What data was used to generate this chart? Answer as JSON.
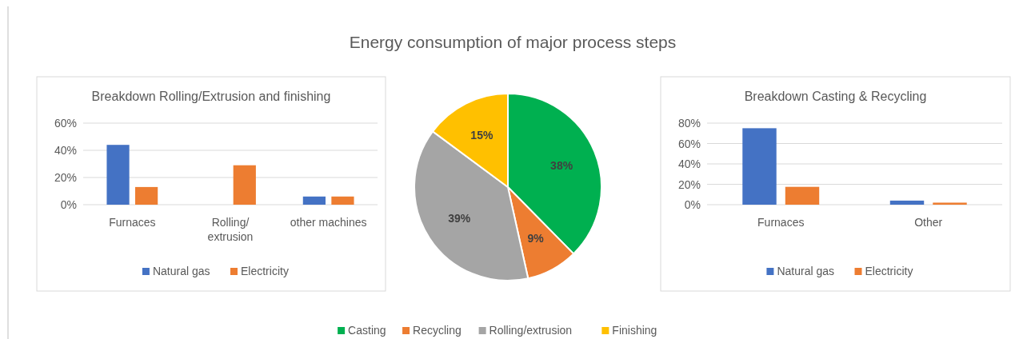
{
  "chart_data": [
    {
      "type": "bar",
      "title": "Breakdown Rolling/Extrusion and finishing",
      "categories": [
        "Furnaces",
        "Rolling/ extrusion",
        "other machines"
      ],
      "series": [
        {
          "name": "Natural gas",
          "color": "#4472c4",
          "values": [
            44,
            null,
            6
          ]
        },
        {
          "name": "Electricity",
          "color": "#ed7d31",
          "values": [
            13,
            29,
            6
          ]
        }
      ],
      "ylim": [
        0,
        60
      ],
      "yticks": [
        {
          "value": 0,
          "label": "0%"
        },
        {
          "value": 20,
          "label": "20%"
        },
        {
          "value": 40,
          "label": "40%"
        },
        {
          "value": 60,
          "label": "60%"
        }
      ],
      "grid": "y",
      "legend": "bottom"
    },
    {
      "type": "pie",
      "title": "Energy consumption of major process steps",
      "categories": [
        "Casting",
        "Recycling",
        "Rolling/extrusion",
        "Finishing"
      ],
      "values": [
        38,
        9,
        39,
        15
      ],
      "colors": [
        "#00b050",
        "#ed7d31",
        "#a5a5a5",
        "#ffc000"
      ],
      "value_labels": [
        "38%",
        "9%",
        "39%",
        "15%"
      ],
      "legend": "bottom"
    },
    {
      "type": "bar",
      "title": "Breakdown Casting & Recycling",
      "categories": [
        "Furnaces",
        "Other"
      ],
      "series": [
        {
          "name": "Natural gas",
          "color": "#4472c4",
          "values": [
            75,
            4
          ]
        },
        {
          "name": "Electricity",
          "color": "#ed7d31",
          "values": [
            17.5,
            2
          ]
        }
      ],
      "ylim": [
        0,
        80
      ],
      "yticks": [
        {
          "value": 0,
          "label": "0%"
        },
        {
          "value": 20,
          "label": "20%"
        },
        {
          "value": 40,
          "label": "40%"
        },
        {
          "value": 60,
          "label": "60%"
        },
        {
          "value": 80,
          "label": "80%"
        }
      ],
      "grid": "y",
      "legend": "bottom"
    }
  ]
}
